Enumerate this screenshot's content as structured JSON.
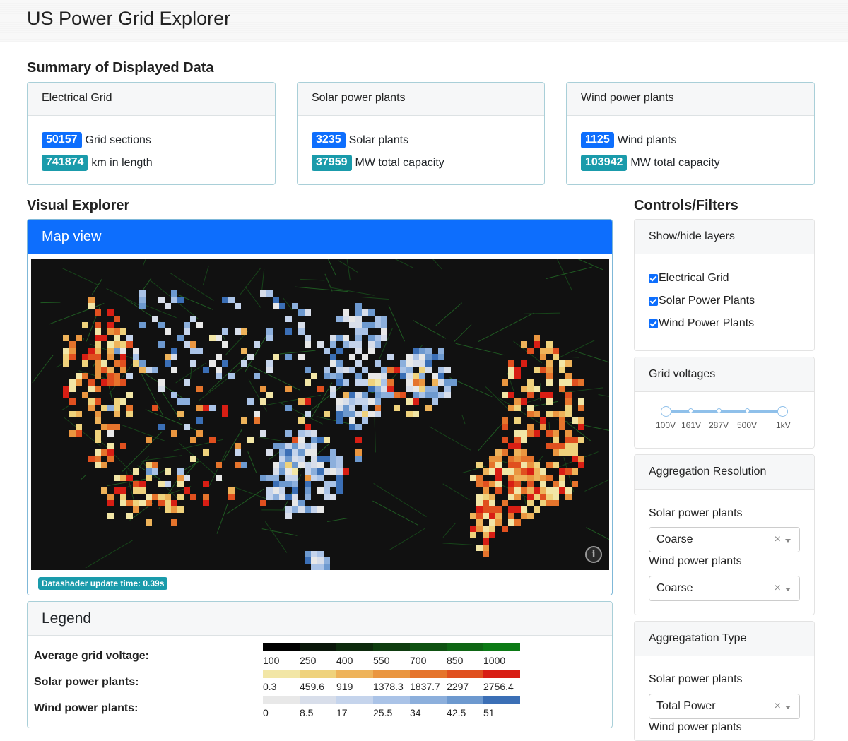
{
  "app": {
    "title": "US Power Grid Explorer"
  },
  "summary": {
    "title": "Summary of Displayed Data",
    "grid": {
      "header": "Electrical Grid",
      "sections_value": "50157",
      "sections_label": "Grid sections",
      "length_value": "741874",
      "length_label": "km in length"
    },
    "solar": {
      "header": "Solar power plants",
      "plants_value": "3235",
      "plants_label": "Solar plants",
      "capacity_value": "37959",
      "capacity_label": "MW total capacity"
    },
    "wind": {
      "header": "Wind power plants",
      "plants_value": "1125",
      "plants_label": "Wind plants",
      "capacity_value": "103942",
      "capacity_label": "MW total capacity"
    }
  },
  "explorer": {
    "title": "Visual Explorer",
    "map_header": "Map view",
    "info_icon": "i",
    "update_badge": "Datashader update time: 0.39s"
  },
  "legend": {
    "header": "Legend",
    "voltage_label": "Average grid voltage:",
    "solar_label": "Solar power plants:",
    "wind_label": "Wind power plants:",
    "voltage_ticks": [
      "100",
      "250",
      "400",
      "550",
      "700",
      "850",
      "1000"
    ],
    "solar_ticks": [
      "0.3",
      "459.6",
      "919",
      "1378.3",
      "1837.7",
      "2297",
      "2756.4"
    ],
    "wind_ticks": [
      "0",
      "8.5",
      "17",
      "25.5",
      "34",
      "42.5",
      "51"
    ],
    "voltage_colors": [
      "#000000",
      "#0a160a",
      "#0d2a0d",
      "#0f3d10",
      "#0f5212",
      "#0e6614",
      "#0b7a15"
    ],
    "solar_colors": [
      "#f2e6a6",
      "#efd27c",
      "#eeb35a",
      "#ea9640",
      "#e5742c",
      "#e0501f",
      "#d81e14"
    ],
    "wind_colors": [
      "#e8e8e8",
      "#d8deea",
      "#c5d4ec",
      "#aac3e7",
      "#8cafdc",
      "#6d99cf",
      "#3b6fb6"
    ]
  },
  "controls": {
    "title": "Controls/Filters",
    "layers": {
      "header": "Show/hide layers",
      "items": [
        "Electrical Grid",
        "Solar Power Plants",
        "Wind Power Plants"
      ]
    },
    "voltages": {
      "header": "Grid voltages",
      "labels": [
        "100V",
        "161V",
        "287V",
        "500V",
        "1kV"
      ]
    },
    "resolution": {
      "header": "Aggregation Resolution",
      "solar_label": "Solar power plants",
      "solar_value": "Coarse",
      "wind_label": "Wind power plants",
      "wind_value": "Coarse"
    },
    "type": {
      "header": "Aggregatation Type",
      "solar_label": "Solar power plants",
      "solar_value": "Total Power",
      "wind_label": "Wind power plants"
    },
    "clear_glyph": "×"
  }
}
